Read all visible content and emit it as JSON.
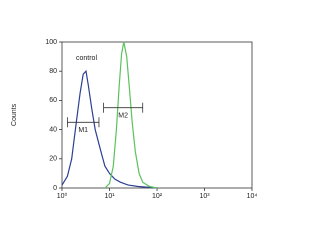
{
  "chart_data": {
    "type": "line",
    "ylabel": "Counts",
    "log_x": true,
    "xlim": [
      1,
      10000
    ],
    "xticks": [
      {
        "value": 1,
        "label": "10⁰"
      },
      {
        "value": 10,
        "label": "10¹"
      },
      {
        "value": 100,
        "label": "10²"
      },
      {
        "value": 1000,
        "label": "10³"
      },
      {
        "value": 10000,
        "label": "10⁴"
      }
    ],
    "ylim": [
      0,
      100
    ],
    "yticks": [
      0,
      20,
      40,
      60,
      80,
      100
    ],
    "series": [
      {
        "name": "control",
        "color": "#2b3f93",
        "x": [
          1,
          1.3,
          1.6,
          2,
          2.4,
          2.8,
          3.2,
          3.6,
          4.2,
          5,
          6,
          7,
          8,
          10,
          13,
          17,
          25,
          40,
          100
        ],
        "values": [
          2,
          8,
          20,
          45,
          65,
          78,
          80,
          70,
          55,
          40,
          30,
          22,
          15,
          10,
          6,
          4,
          2,
          1,
          0
        ]
      },
      {
        "color": "#5cc25c",
        "x": [
          8,
          10,
          12,
          14,
          16,
          18,
          20,
          23,
          26,
          30,
          35,
          42,
          50,
          70,
          100
        ],
        "values": [
          0,
          3,
          15,
          40,
          70,
          92,
          100,
          90,
          70,
          45,
          25,
          10,
          4,
          1,
          0
        ]
      }
    ],
    "gates": [
      {
        "label": "M1",
        "range": [
          1.3,
          6
        ],
        "y": 45
      },
      {
        "label": "M2",
        "range": [
          7.5,
          50
        ],
        "y": 55
      }
    ]
  }
}
